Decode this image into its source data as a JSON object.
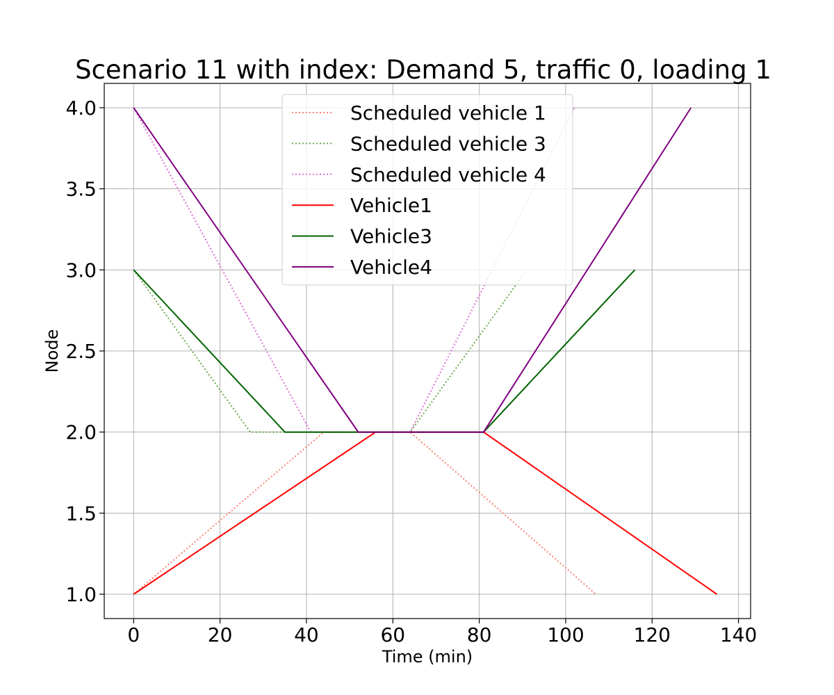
{
  "chart_data": {
    "type": "line",
    "title": "Scenario 11 with index: Demand 5, traffic 0, loading 1",
    "xlabel": "Time (min)",
    "ylabel": "Node",
    "xlim": [
      -6.8,
      142.8
    ],
    "ylim": [
      0.85,
      4.15
    ],
    "xticks": [
      0,
      20,
      40,
      60,
      80,
      100,
      120,
      140
    ],
    "yticks": [
      1.0,
      1.5,
      2.0,
      2.5,
      3.0,
      3.5,
      4.0
    ],
    "xtick_labels": [
      "0",
      "20",
      "40",
      "60",
      "80",
      "100",
      "120",
      "140"
    ],
    "ytick_labels": [
      "1.0",
      "1.5",
      "2.0",
      "2.5",
      "3.0",
      "3.5",
      "4.0"
    ],
    "grid": true,
    "legend_position": "upper center",
    "series": [
      {
        "name": "Scheduled vehicle 1",
        "style": "dotted",
        "color": "#fa8072",
        "points": [
          [
            0,
            1.0
          ],
          [
            44,
            2.0
          ],
          [
            64,
            2.0
          ],
          [
            107,
            1.0
          ]
        ]
      },
      {
        "name": "Scheduled vehicle 3",
        "style": "dotted",
        "color": "#6aa84f",
        "points": [
          [
            0,
            3.0
          ],
          [
            27,
            2.0
          ],
          [
            64,
            2.0
          ],
          [
            91,
            3.0
          ]
        ]
      },
      {
        "name": "Scheduled vehicle 4",
        "style": "dotted",
        "color": "#da70d6",
        "points": [
          [
            0,
            4.0
          ],
          [
            41,
            2.0
          ],
          [
            64,
            2.0
          ],
          [
            102,
            4.0
          ]
        ]
      },
      {
        "name": "Vehicle1",
        "style": "solid",
        "color": "#ff0000",
        "points": [
          [
            0,
            1.0
          ],
          [
            56,
            2.0
          ],
          [
            81,
            2.0
          ],
          [
            135,
            1.0
          ]
        ]
      },
      {
        "name": "Vehicle3",
        "style": "solid",
        "color": "#006400",
        "points": [
          [
            0,
            3.0
          ],
          [
            35,
            2.0
          ],
          [
            81,
            2.0
          ],
          [
            116,
            3.0
          ]
        ]
      },
      {
        "name": "Vehicle4",
        "style": "solid",
        "color": "#800080",
        "points": [
          [
            0,
            4.0
          ],
          [
            52,
            2.0
          ],
          [
            81,
            2.0
          ],
          [
            129,
            4.0
          ]
        ]
      }
    ]
  }
}
